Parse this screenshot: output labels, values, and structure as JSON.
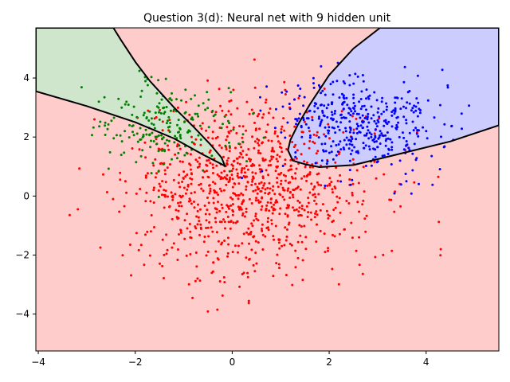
{
  "chart_data": {
    "type": "scatter",
    "title": "Question 3(d): Neural net with 9 hidden unit",
    "xlabel": "",
    "ylabel": "",
    "xlim": [
      -4.05,
      5.5
    ],
    "ylim": [
      -5.25,
      5.7
    ],
    "xticks": [
      -4,
      -2,
      0,
      2,
      4
    ],
    "yticks": [
      -4,
      -2,
      0,
      2,
      4
    ],
    "grid": false,
    "legend": "none",
    "colors": {
      "background_region": "#ffcccc",
      "green_region": "#cfe6cc",
      "blue_region": "#ccccff",
      "boundary": "#000000",
      "red_points": "#ff0000",
      "green_points": "#008000",
      "blue_points": "#0000ff"
    },
    "regions": [
      {
        "class": "green",
        "boundary": [
          [
            -4.05,
            3.55
          ],
          [
            -3.0,
            3.05
          ],
          [
            -2.0,
            2.5
          ],
          [
            -1.2,
            1.95
          ],
          [
            -0.6,
            1.4
          ],
          [
            -0.3,
            1.15
          ],
          [
            -0.15,
            1.02
          ],
          [
            -0.22,
            1.3
          ],
          [
            -0.45,
            1.75
          ],
          [
            -0.8,
            2.35
          ],
          [
            -1.2,
            3.0
          ],
          [
            -1.7,
            3.9
          ],
          [
            -2.0,
            4.55
          ],
          [
            -2.3,
            5.3
          ],
          [
            -2.45,
            5.7
          ],
          [
            -4.05,
            5.7
          ]
        ]
      },
      {
        "class": "blue",
        "boundary": [
          [
            1.15,
            1.55
          ],
          [
            1.25,
            1.2
          ],
          [
            1.5,
            1.08
          ],
          [
            1.8,
            0.98
          ],
          [
            2.5,
            1.05
          ],
          [
            3.5,
            1.45
          ],
          [
            4.5,
            1.85
          ],
          [
            5.5,
            2.4
          ],
          [
            5.5,
            5.7
          ],
          [
            3.05,
            5.7
          ],
          [
            2.5,
            5.0
          ],
          [
            2.0,
            4.1
          ],
          [
            1.6,
            3.1
          ],
          [
            1.35,
            2.4
          ],
          [
            1.2,
            1.9
          ]
        ]
      }
    ],
    "clusters": [
      {
        "class": "red",
        "count": 950,
        "center": [
          0.4,
          0.2
        ],
        "spread": [
          1.25,
          1.45
        ]
      },
      {
        "class": "green",
        "count": 200,
        "center": [
          -1.4,
          2.4
        ],
        "spread": [
          0.75,
          0.75
        ]
      },
      {
        "class": "blue",
        "count": 420,
        "center": [
          2.6,
          2.45
        ],
        "spread": [
          0.85,
          0.75
        ]
      }
    ]
  }
}
